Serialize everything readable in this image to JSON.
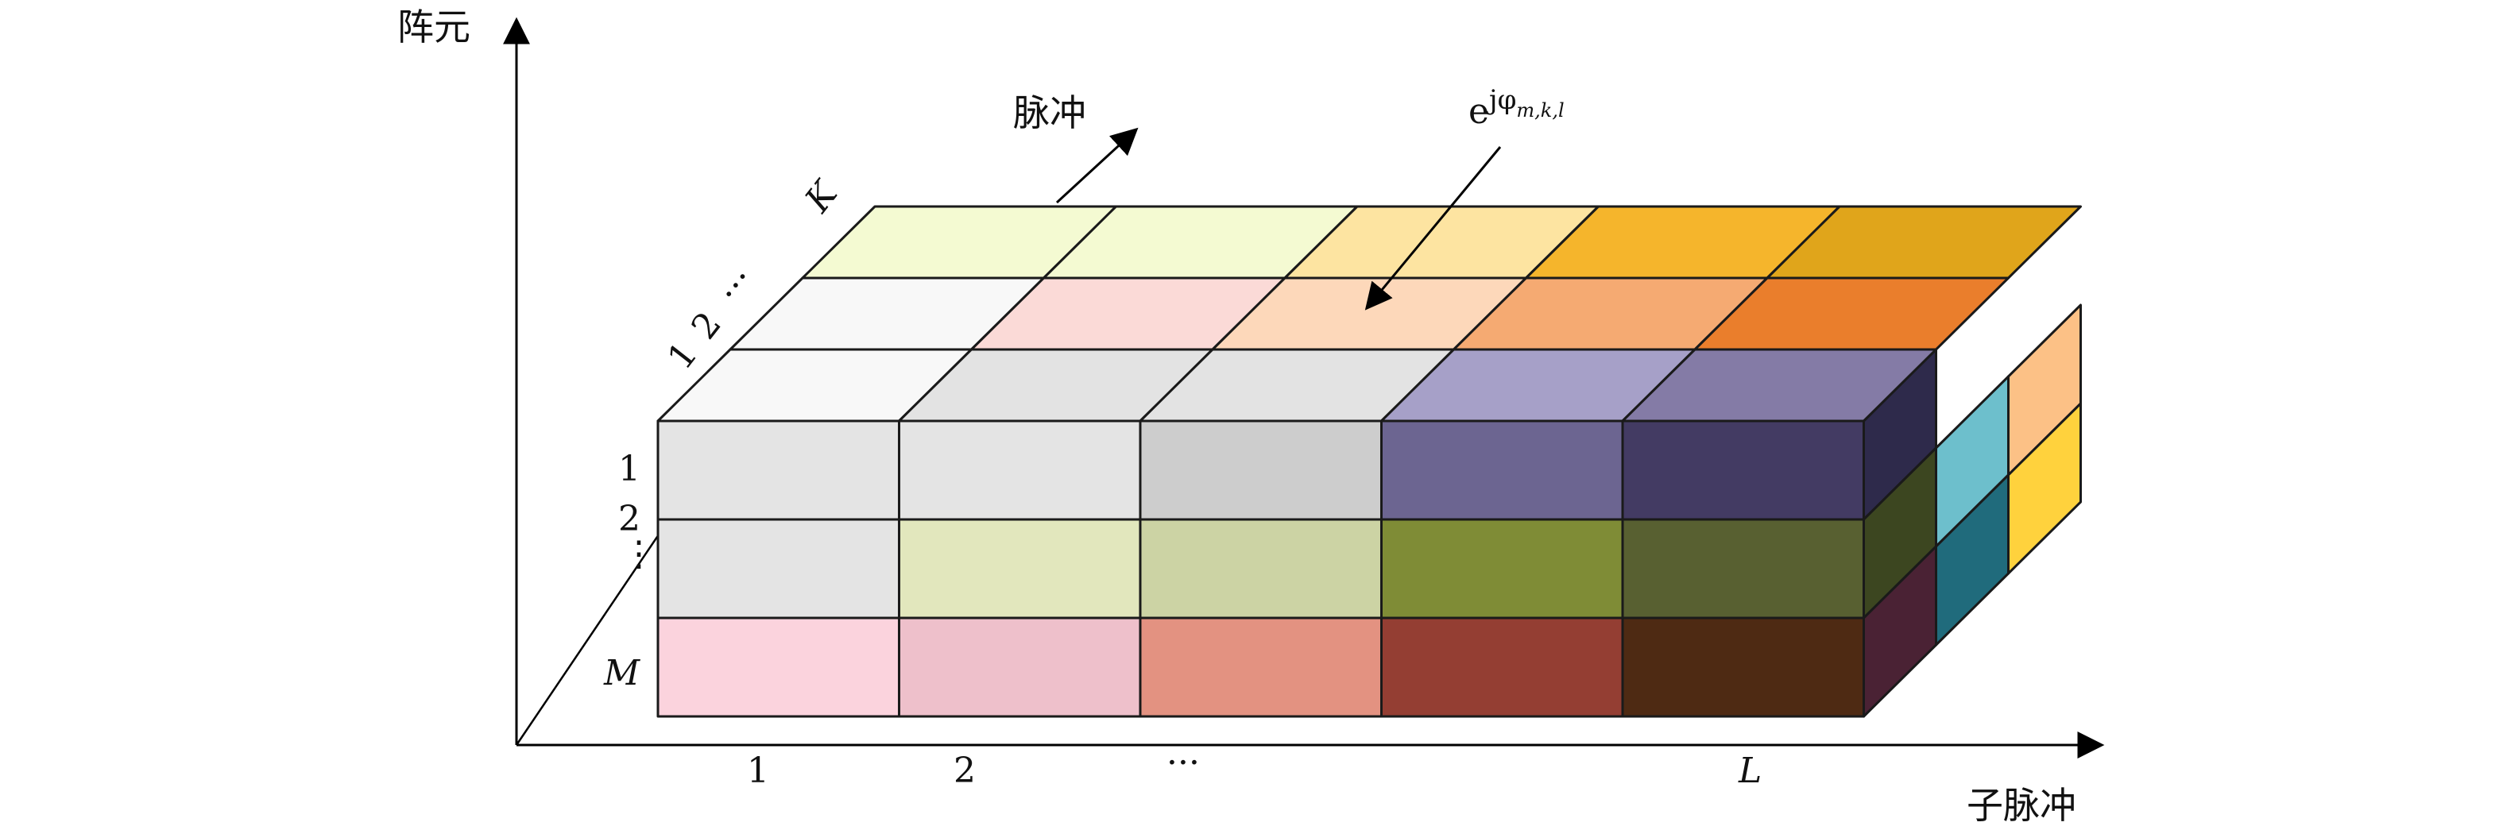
{
  "axes": {
    "vertical_label": "阵元",
    "horizontal_label": "子脉冲",
    "depth_label": "脉冲"
  },
  "ticks": {
    "subpulse": [
      "1",
      "2",
      "···",
      "L"
    ],
    "element": [
      "1",
      "2",
      "⋮",
      "M"
    ],
    "pulse": [
      "1",
      "2",
      "···",
      "K"
    ]
  },
  "annotation": {
    "base": "e",
    "exp": "jφ",
    "sub": "m,k,l"
  },
  "colors": {
    "front_faces": [
      [
        "#e4e4e4",
        "#e4e4e4",
        "#cdcdcd",
        "#6c6591",
        "#433b63"
      ],
      [
        "#e4e4e4",
        "#e2e7bd",
        "#ccd3a4",
        "#7f8c36",
        "#586031"
      ],
      [
        "#fbd3dd",
        "#eec0cb",
        "#e39281",
        "#943e33",
        "#4e2a13"
      ]
    ],
    "top_faces": [
      [
        "#f8f8f8",
        "#e3e3e3",
        "#e3e3e3",
        "#a6a0c8",
        "#847ba6"
      ],
      [
        "#f8f8f8",
        "#fbdad7",
        "#fdd8ba",
        "#f5aa72",
        "#ea7e2c"
      ],
      [
        "#f4fad2",
        "#f4fad2",
        "#fde4a1",
        "#f5b52c",
        "#e0a51b"
      ]
    ],
    "side_faces": [
      [
        "#2e2a4b",
        "#3c4620",
        "#4a2234"
      ],
      [
        "#6dbfcc",
        "#206b7c"
      ],
      [
        "#fcc186",
        "#ffd23d"
      ],
      [
        "#7a3908"
      ],
      [
        "#5b420a"
      ]
    ]
  }
}
